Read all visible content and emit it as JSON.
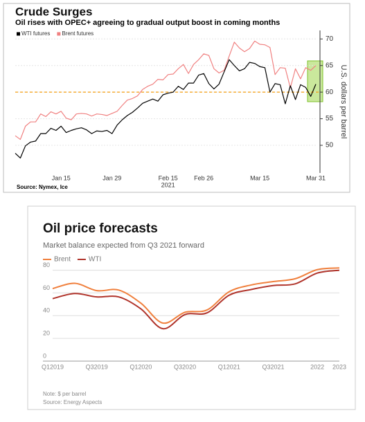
{
  "chart_data": [
    {
      "type": "line",
      "title": "Crude Surges",
      "subtitle": "Oil rises with OPEC+ agreeing to gradual output boost in coming months",
      "categories": [
        null,
        null,
        null,
        null,
        null,
        null,
        null,
        null,
        null,
        "Jan 15",
        null,
        null,
        null,
        null,
        null,
        null,
        null,
        null,
        null,
        "Jan 29",
        null,
        null,
        null,
        null,
        null,
        null,
        null,
        null,
        null,
        null,
        "Feb 15",
        null,
        null,
        null,
        null,
        null,
        null,
        "Feb 26",
        null,
        null,
        null,
        null,
        null,
        null,
        null,
        null,
        null,
        null,
        "Mar 15",
        null,
        null,
        null,
        null,
        null,
        null,
        null,
        null,
        null,
        null,
        "Mar 31"
      ],
      "x_label": "2021",
      "y_label": "U.S. dollars per barrel",
      "series": [
        {
          "name": "WTI futures",
          "color": "#000000",
          "values": [
            48.5,
            47.6,
            49.9,
            50.6,
            50.8,
            52.2,
            52.2,
            53.2,
            52.8,
            53.6,
            52.4,
            52.8,
            53.1,
            53.3,
            52.9,
            52.2,
            52.7,
            52.6,
            52.8,
            52.2,
            53.8,
            54.8,
            55.6,
            56.2,
            57.0,
            57.9,
            58.3,
            58.7,
            58.3,
            59.5,
            59.8,
            60.0,
            61.1,
            60.5,
            61.7,
            61.7,
            63.2,
            63.5,
            61.6,
            60.6,
            61.5,
            63.8,
            66.1,
            65.0,
            64.0,
            64.4,
            65.6,
            65.4,
            64.8,
            64.6,
            60.0,
            61.6,
            61.4,
            57.8,
            61.2,
            58.6,
            61.4,
            60.9,
            59.2,
            61.5
          ]
        },
        {
          "name": "Brent futures",
          "color": "#f08080",
          "values": [
            51.8,
            51.1,
            53.6,
            54.4,
            54.4,
            55.9,
            55.4,
            56.3,
            55.9,
            56.4,
            55.1,
            54.8,
            55.9,
            56.0,
            55.9,
            55.5,
            55.9,
            55.8,
            55.6,
            56.0,
            56.4,
            57.5,
            58.5,
            58.8,
            59.3,
            60.5,
            61.1,
            61.5,
            62.4,
            62.3,
            63.3,
            63.4,
            64.4,
            65.2,
            63.5,
            65.2,
            66.1,
            67.2,
            66.9,
            64.4,
            63.6,
            64.1,
            66.8,
            69.4,
            68.3,
            67.6,
            68.2,
            69.6,
            69.0,
            68.9,
            68.4,
            63.3,
            64.6,
            64.5,
            60.8,
            64.4,
            62.5,
            64.6,
            64.1,
            65.0
          ]
        }
      ],
      "ylim": [
        44.8,
        71.6
      ],
      "yticks": [
        50,
        55,
        60,
        65,
        70
      ],
      "y_axis_side": "right",
      "grid": true,
      "hline": 60,
      "hline_color": "#f5a623",
      "legend": "top-left",
      "legend_marker": "square",
      "source": "Source: Nymex, Ice"
    },
    {
      "type": "line",
      "title": "Oil price forecasts",
      "subtitle": "Market balance expected from Q3 2021 forward",
      "categories": [
        "Q12019",
        null,
        "Q32019",
        null,
        "Q12020",
        null,
        "Q32020",
        null,
        "Q12021",
        null,
        "Q32021",
        null,
        "2022",
        "2023"
      ],
      "series": [
        {
          "name": "Brent",
          "color": "#f07f3c",
          "values": [
            63.8,
            68.5,
            62,
            62.5,
            51,
            33.5,
            43,
            45,
            61,
            67,
            70,
            72.5,
            80.5,
            82
          ]
        },
        {
          "name": "WTI",
          "color": "#b0332a",
          "values": [
            55,
            59.5,
            56.5,
            56.5,
            46,
            28.5,
            41,
            42.5,
            58,
            63,
            66.5,
            68,
            77.5,
            80
          ]
        }
      ],
      "ylim": [
        0,
        84
      ],
      "yticks": [
        0,
        20,
        40,
        60,
        80
      ],
      "y_axis_side": "left",
      "grid": true,
      "smooth": true,
      "legend": "top-left",
      "legend_marker": "line",
      "note": "Note: $ per barrel",
      "source": "Source: Energy Aspects"
    }
  ]
}
